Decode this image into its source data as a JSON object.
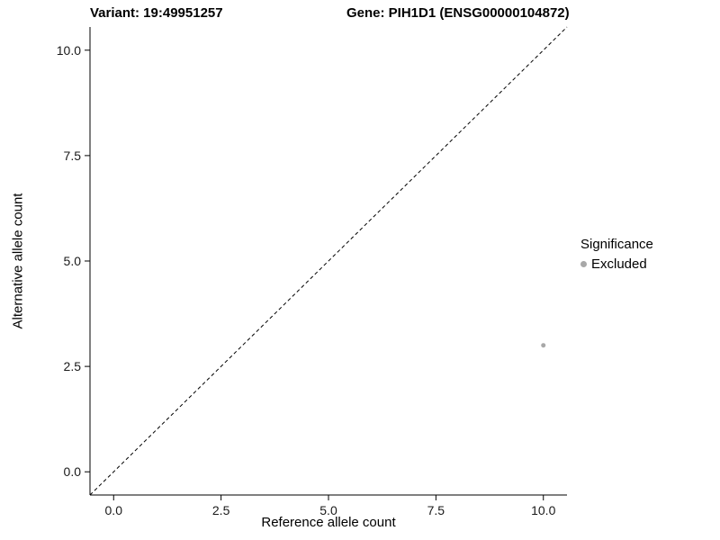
{
  "titles": {
    "variant": "Variant: 19:49951257",
    "gene": "Gene: PIH1D1 (ENSG00000104872)"
  },
  "chart_data": {
    "type": "scatter",
    "title_left": "Variant: 19:49951257",
    "title_right": "Gene: PIH1D1 (ENSG00000104872)",
    "xlabel": "Reference allele count",
    "ylabel": "Alternative allele count",
    "xlim": [
      -0.55,
      10.55
    ],
    "ylim": [
      -0.55,
      10.55
    ],
    "xticks": [
      0.0,
      2.5,
      5.0,
      7.5,
      10.0
    ],
    "yticks": [
      0.0,
      2.5,
      5.0,
      7.5,
      10.0
    ],
    "xtick_labels": [
      "0.0",
      "2.5",
      "5.0",
      "7.5",
      "10.0"
    ],
    "ytick_labels": [
      "0.0",
      "2.5",
      "5.0",
      "7.5",
      "10.0"
    ],
    "grid": false,
    "reference_line": {
      "style": "dashed",
      "from": [
        -0.55,
        -0.55
      ],
      "to": [
        10.55,
        10.55
      ],
      "color": "#000000"
    },
    "series": [
      {
        "name": "Excluded",
        "color": "#a8a8a8",
        "points": [
          [
            10,
            3
          ]
        ]
      }
    ],
    "legend": {
      "title": "Significance",
      "position": "right",
      "entries": [
        {
          "label": "Excluded",
          "color": "#a8a8a8"
        }
      ]
    }
  }
}
